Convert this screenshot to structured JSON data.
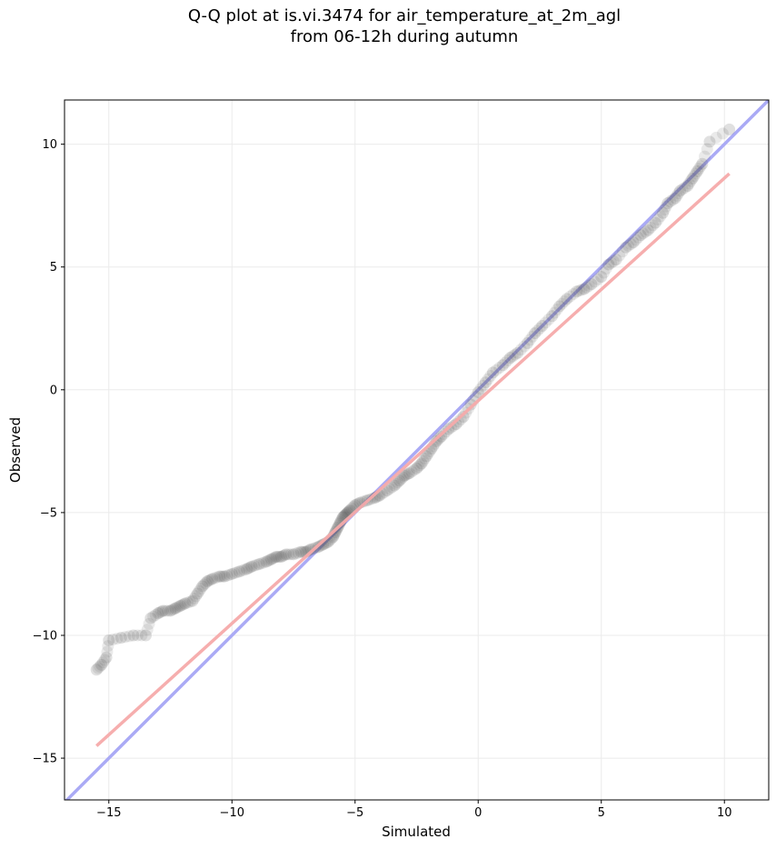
{
  "chart_data": {
    "type": "scatter",
    "title_lines": [
      "Q-Q plot at is.vi.3474 for air_temperature_at_2m_agl",
      "from 06-12h during autumn"
    ],
    "xlabel": "Simulated",
    "ylabel": "Observed",
    "xlim": [
      -16.8,
      11.8
    ],
    "ylim": [
      -16.7,
      11.8
    ],
    "xticks": [
      -15,
      -10,
      -5,
      0,
      5,
      10
    ],
    "yticks": [
      -15,
      -10,
      -5,
      0,
      5,
      10
    ],
    "xtick_labels": [
      "−15",
      "−10",
      "−5",
      "0",
      "5",
      "10"
    ],
    "ytick_labels": [
      "−15",
      "−10",
      "−5",
      "0",
      "5",
      "10"
    ],
    "grid": true,
    "colors": {
      "points": "#555555",
      "reference_line": "#aaaaf5",
      "fit_line": "#f5aaaa",
      "grid": "#ebebeb"
    },
    "lines": {
      "reference": {
        "x": [
          -16.8,
          11.8
        ],
        "y": [
          -16.8,
          11.8
        ]
      },
      "fit": {
        "x": [
          -15.5,
          10.2
        ],
        "y": [
          -14.5,
          8.8
        ]
      }
    },
    "points": {
      "x": [
        -15.5,
        -15.3,
        -15.1,
        -15.0,
        -14.5,
        -14.0,
        -13.5,
        -13.3,
        -13.0,
        -12.8,
        -12.5,
        -12.3,
        -12.1,
        -11.9,
        -11.6,
        -11.4,
        -11.2,
        -11.0,
        -10.8,
        -10.5,
        -10.3,
        -10.0,
        -9.7,
        -9.4,
        -9.2,
        -8.9,
        -8.6,
        -8.4,
        -8.2,
        -8.0,
        -7.8,
        -7.5,
        -7.2,
        -7.0,
        -6.8,
        -6.5,
        -6.3,
        -6.1,
        -5.9,
        -5.8,
        -5.7,
        -5.6,
        -5.5,
        -5.4,
        -5.3,
        -5.2,
        -5.0,
        -4.8,
        -4.5,
        -4.2,
        -4.0,
        -3.7,
        -3.4,
        -3.2,
        -3.0,
        -2.8,
        -2.5,
        -2.3,
        -2.1,
        -1.9,
        -1.7,
        -1.5,
        -1.2,
        -0.9,
        -0.6,
        -0.3,
        0.0,
        0.3,
        0.6,
        1.0,
        1.3,
        1.6,
        2.0,
        2.3,
        2.6,
        3.0,
        3.3,
        3.6,
        4.0,
        4.3,
        4.6,
        5.0,
        5.3,
        5.6,
        6.0,
        6.3,
        6.6,
        6.9,
        7.2,
        7.5,
        7.7,
        8.0,
        8.2,
        8.5,
        8.7,
        8.9,
        9.1,
        9.4,
        10.2
      ],
      "y": [
        -11.4,
        -11.2,
        -10.9,
        -10.2,
        -10.1,
        -10.0,
        -10.0,
        -9.3,
        -9.1,
        -9.0,
        -9.0,
        -8.9,
        -8.8,
        -8.7,
        -8.6,
        -8.3,
        -8.0,
        -7.8,
        -7.7,
        -7.6,
        -7.6,
        -7.5,
        -7.4,
        -7.3,
        -7.2,
        -7.1,
        -7.0,
        -6.9,
        -6.8,
        -6.8,
        -6.7,
        -6.7,
        -6.6,
        -6.6,
        -6.5,
        -6.4,
        -6.3,
        -6.2,
        -6.0,
        -5.8,
        -5.6,
        -5.4,
        -5.2,
        -5.1,
        -5.0,
        -4.9,
        -4.7,
        -4.6,
        -4.5,
        -4.4,
        -4.3,
        -4.1,
        -3.9,
        -3.7,
        -3.5,
        -3.4,
        -3.2,
        -3.0,
        -2.7,
        -2.4,
        -2.1,
        -1.9,
        -1.6,
        -1.4,
        -1.1,
        -0.6,
        -0.1,
        0.3,
        0.7,
        1.0,
        1.3,
        1.5,
        1.9,
        2.3,
        2.6,
        3.0,
        3.4,
        3.7,
        4.0,
        4.1,
        4.3,
        4.6,
        5.1,
        5.3,
        5.8,
        6.0,
        6.3,
        6.5,
        6.8,
        7.2,
        7.6,
        7.8,
        8.1,
        8.3,
        8.6,
        8.9,
        9.2,
        10.1,
        10.6
      ]
    }
  }
}
